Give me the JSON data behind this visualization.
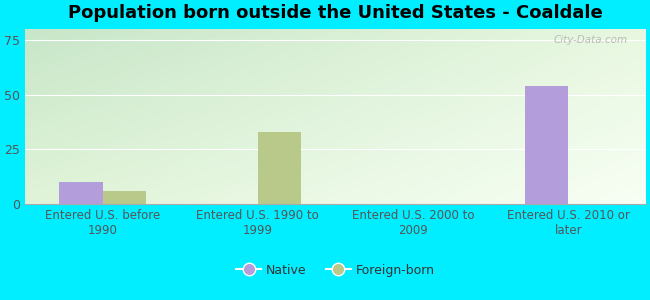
{
  "title": "Population born outside the United States - Coaldale",
  "categories": [
    "Entered U.S. before\n1990",
    "Entered U.S. 1990 to\n1999",
    "Entered U.S. 2000 to\n2009",
    "Entered U.S. 2010 or\nlater"
  ],
  "native_values": [
    10,
    0,
    0,
    54
  ],
  "foreign_values": [
    6,
    33,
    0,
    0
  ],
  "native_color": "#b39ddb",
  "foreign_color": "#b8c98a",
  "background_color": "#00eeff",
  "plot_bg_topleft": "#c8e6c9",
  "plot_bg_bottomright": "#f5fff0",
  "ylim": [
    0,
    80
  ],
  "yticks": [
    0,
    25,
    50,
    75
  ],
  "bar_width": 0.28,
  "title_fontsize": 13,
  "watermark": "City-Data.com",
  "legend_native": "Native",
  "legend_foreign": "Foreign-born",
  "tick_color": "#555555",
  "tick_fontsize": 8.5,
  "grid_color": "#e0e0e0"
}
